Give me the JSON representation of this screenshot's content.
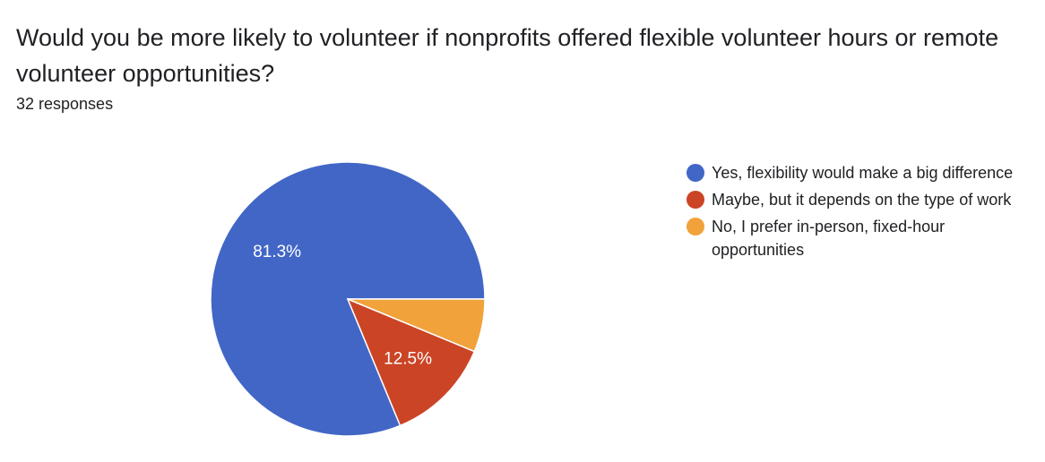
{
  "question": {
    "title": "Would you be more likely to volunteer if nonprofits offered flexible volunteer hours or remote volunteer opportunities?",
    "responses": "32 responses"
  },
  "chart_data": {
    "type": "pie",
    "title": "",
    "total": 32,
    "slices": [
      {
        "label": "Yes, flexibility would make a big difference",
        "value": 26,
        "percent": 81.3,
        "percent_label": "81.3%",
        "color": "#4266c6"
      },
      {
        "label": "Maybe, but it depends on the type of work",
        "value": 4,
        "percent": 12.5,
        "percent_label": "12.5%",
        "color": "#cb4426"
      },
      {
        "label": "No, I prefer in-person, fixed-hour opportunities",
        "value": 2,
        "percent": 6.25,
        "percent_label": "",
        "color": "#f1a23b"
      }
    ],
    "legend_position": "right",
    "start_angle": "3 o'clock",
    "direction": "counter-clockwise"
  }
}
